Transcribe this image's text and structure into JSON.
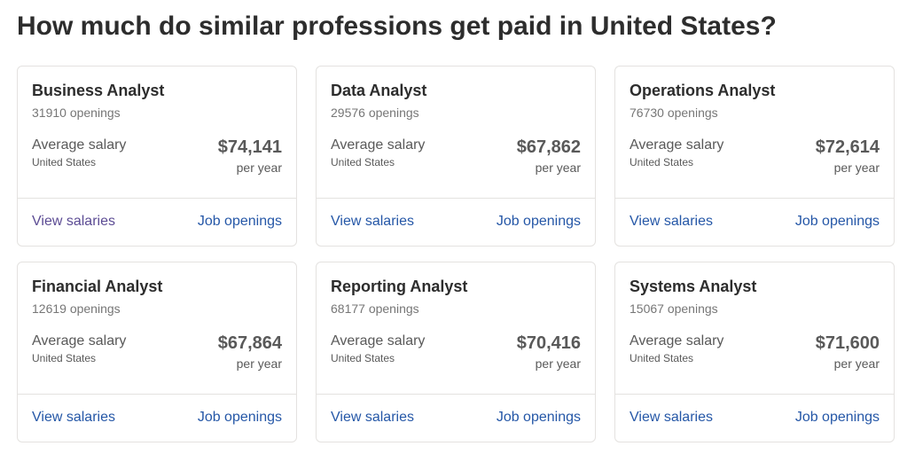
{
  "header": {
    "title": "How much do similar professions get paid in United States?"
  },
  "cards": [
    {
      "title": "Business Analyst",
      "openings": "31910 openings",
      "salary_label": "Average salary",
      "location": "United States",
      "salary": "$74,141",
      "period": "per year",
      "link_salaries": "View salaries",
      "link_jobs": "Job openings",
      "visited": true
    },
    {
      "title": "Data Analyst",
      "openings": "29576 openings",
      "salary_label": "Average salary",
      "location": "United States",
      "salary": "$67,862",
      "period": "per year",
      "link_salaries": "View salaries",
      "link_jobs": "Job openings",
      "visited": false
    },
    {
      "title": "Operations Analyst",
      "openings": "76730 openings",
      "salary_label": "Average salary",
      "location": "United States",
      "salary": "$72,614",
      "period": "per year",
      "link_salaries": "View salaries",
      "link_jobs": "Job openings",
      "visited": false
    },
    {
      "title": "Financial Analyst",
      "openings": "12619 openings",
      "salary_label": "Average salary",
      "location": "United States",
      "salary": "$67,864",
      "period": "per year",
      "link_salaries": "View salaries",
      "link_jobs": "Job openings",
      "visited": false
    },
    {
      "title": "Reporting Analyst",
      "openings": "68177 openings",
      "salary_label": "Average salary",
      "location": "United States",
      "salary": "$70,416",
      "period": "per year",
      "link_salaries": "View salaries",
      "link_jobs": "Job openings",
      "visited": false
    },
    {
      "title": "Systems Analyst",
      "openings": "15067 openings",
      "salary_label": "Average salary",
      "location": "United States",
      "salary": "$71,600",
      "period": "per year",
      "link_salaries": "View salaries",
      "link_jobs": "Job openings",
      "visited": false
    }
  ]
}
